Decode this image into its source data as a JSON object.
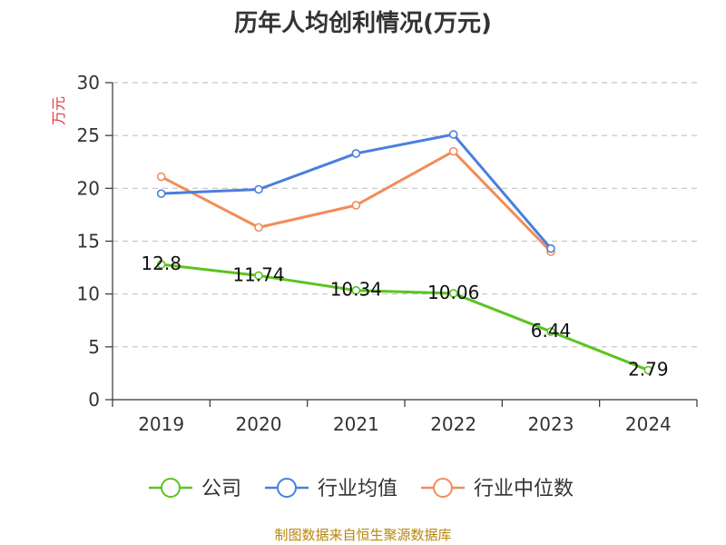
{
  "chart_data": {
    "type": "line",
    "title": "历年人均创利情况(万元)",
    "ylabel": "万元",
    "xlabel": "",
    "categories": [
      "2019",
      "2020",
      "2021",
      "2022",
      "2023",
      "2024"
    ],
    "ylim": [
      0,
      30
    ],
    "yticks": [
      0,
      5,
      10,
      15,
      20,
      25,
      30
    ],
    "grid": true,
    "legend_position": "bottom",
    "series": [
      {
        "name": "公司",
        "color": "#5cc31f",
        "values": [
          12.8,
          11.74,
          10.34,
          10.06,
          6.44,
          2.79
        ],
        "labels": [
          "12.8",
          "11.74",
          "10.34",
          "10.06",
          "6.44",
          "2.79"
        ]
      },
      {
        "name": "行业均值",
        "color": "#4a7fdc",
        "values": [
          19.5,
          19.9,
          23.3,
          25.1,
          14.3,
          null
        ],
        "labels": []
      },
      {
        "name": "行业中位数",
        "color": "#f28c5a",
        "values": [
          21.1,
          16.3,
          18.4,
          23.5,
          14.0,
          null
        ],
        "labels": []
      }
    ],
    "source": "制图数据来自恒生聚源数据库"
  }
}
